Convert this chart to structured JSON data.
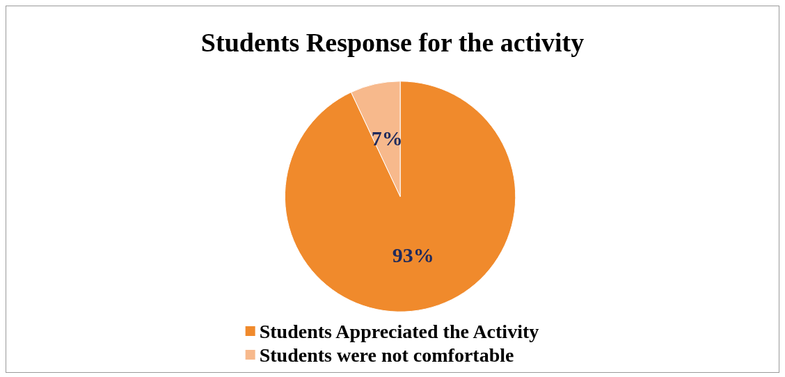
{
  "chart_data": {
    "type": "pie",
    "title": "Students Response for the activity",
    "categories": [
      "Students Appreciated the Activity",
      "Students were not comfortable"
    ],
    "values": [
      93,
      7
    ],
    "colors": [
      "#f08a2c",
      "#f7b98c"
    ],
    "value_labels": [
      "93%",
      "7%"
    ],
    "legend": "bottom"
  }
}
